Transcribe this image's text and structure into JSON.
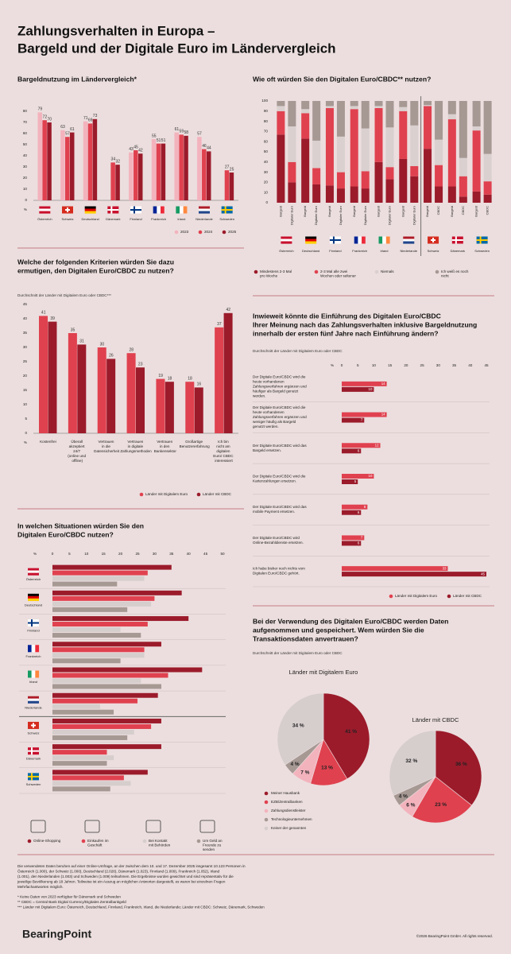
{
  "title": [
    "Zahlungsverhalten in Europa –",
    "Bargeld und der Digitale Euro im Ländervergleich"
  ],
  "chart_data": [
    {
      "type": "bar",
      "title": "Bargeldnutzung im Ländervergleich*",
      "y_label": "%",
      "categories": [
        "Österreich",
        "Schweiz",
        "Deutschland",
        "Dänemark",
        "Finnland",
        "Frankreich",
        "Irland",
        "Niederlande",
        "Schweden"
      ],
      "series": [
        {
          "name": "2023",
          "color": "#f3b3bd",
          "values": [
            79,
            63,
            71,
            null,
            43,
            55,
            61,
            57,
            null
          ]
        },
        {
          "name": "2024",
          "color": "#e0414f",
          "values": [
            72,
            57,
            69,
            34,
            45,
            51,
            59,
            46,
            27
          ]
        },
        {
          "name": "2025",
          "color": "#9b1b2b",
          "values": [
            70,
            61,
            73,
            32,
            42,
            51,
            58,
            44,
            25
          ]
        }
      ],
      "ylim": [
        0,
        80
      ],
      "yticks": [
        0,
        10,
        20,
        30,
        40,
        50,
        60,
        70,
        80
      ],
      "grid": false
    },
    {
      "type": "stacked_bar",
      "title": "Wie oft würden Sie den Digitalen Euro/CBDC** nutzen?",
      "groups": [
        "Österreich",
        "Deutschland",
        "Finnland",
        "Frankreich",
        "Irland",
        "Niederlande",
        "Schweiz",
        "Dänemark",
        "Schweden"
      ],
      "categories": [
        "Bargeld",
        "Digitaler Euro",
        "Bargeld",
        "Digitaler Euro",
        "Bargeld",
        "Digitaler Euro",
        "Bargeld",
        "Digitaler Euro",
        "Bargeld",
        "Digitaler Euro",
        "Bargeld",
        "Digitaler Euro",
        "Bargeld",
        "CBDC",
        "Bargeld",
        "CBDC",
        "Bargeld",
        "CBDC"
      ],
      "series": [
        {
          "name": "Mindestens 2-3 Mal pro Woche",
          "color": "#9b1b2b",
          "values": [
            67,
            20,
            63,
            18,
            17,
            14,
            16,
            14,
            40,
            23,
            43,
            26,
            53,
            16,
            16,
            6,
            11,
            8
          ]
        },
        {
          "name": "2-3 Mal alle zwei Wochen oder seltener",
          "color": "#e0414f",
          "values": [
            23,
            20,
            25,
            16,
            76,
            16,
            76,
            17,
            53,
            12,
            47,
            10,
            42,
            21,
            66,
            20,
            60,
            13
          ]
        },
        {
          "name": "Niemals",
          "color": "#d9d0cf",
          "values": [
            5,
            35,
            4,
            27,
            2,
            35,
            3,
            42,
            2,
            39,
            4,
            40,
            1,
            25,
            5,
            18,
            4,
            27
          ]
        },
        {
          "name": "Ich weiß es noch nicht",
          "color": "#a69893",
          "values": [
            5,
            25,
            8,
            39,
            5,
            35,
            5,
            27,
            5,
            26,
            6,
            24,
            4,
            38,
            13,
            56,
            25,
            52
          ]
        }
      ],
      "ylim": [
        0,
        100
      ],
      "yticks": [
        0,
        10,
        20,
        30,
        40,
        50,
        60,
        70,
        80,
        90,
        100
      ],
      "grid": false
    },
    {
      "type": "bar",
      "title": [
        "Welche der folgenden Kriterien würden Sie dazu",
        "ermutigen, den Digitalen Euro/CBDC zu nutzen?"
      ],
      "subtitle": "Durchschnitt der Länder mit Digitalem Euro oder CBDC***",
      "y_label": "%",
      "categories": [
        "Kostenfrei",
        "Überall akzeptiert 24/7 (online und offline)",
        "Vertrauen in die Datensicherheit",
        "Vertrauen in digitale Zahlungsmethoden",
        "Vertrauen in den Bankensektor",
        "Großartige Benutzererfahrung",
        "Ich bin nicht am digitalen Euro/ CBDC interessiert"
      ],
      "series": [
        {
          "name": "Länder mit Digitalem Euro",
          "color": "#e0414f",
          "values": [
            41,
            35,
            30,
            28,
            19,
            18,
            37
          ]
        },
        {
          "name": "Länder mit CBDC",
          "color": "#9b1b2b",
          "values": [
            39,
            31,
            26,
            23,
            18,
            16,
            42
          ]
        }
      ],
      "ylim": [
        0,
        45
      ],
      "yticks": [
        0,
        5,
        10,
        15,
        20,
        25,
        30,
        35,
        40,
        45
      ],
      "grid": false
    },
    {
      "type": "hbar",
      "title": [
        "In welchen Situationen würden Sie den",
        "Digitalen Euro/CBDC nutzen?"
      ],
      "x_label": "%",
      "categories": [
        "Österreich",
        "Deutschland",
        "Finnland",
        "Frankreich",
        "Irland",
        "Niederlande",
        "Schweiz",
        "Dänemark",
        "Schweden"
      ],
      "series": [
        {
          "name": "Online-Shopping",
          "color": "#9b1b2b",
          "values": [
            35,
            38,
            40,
            32,
            44,
            31,
            32,
            32,
            28
          ]
        },
        {
          "name": "Einkaufen im Geschäft",
          "color": "#e0414f",
          "values": [
            28,
            30,
            28,
            27,
            34,
            25,
            29,
            16,
            21
          ]
        },
        {
          "name": "Bei Kontakt mit Behörden",
          "color": "#d6cdcd",
          "values": [
            27,
            29,
            20,
            27,
            26,
            14,
            24,
            18,
            23
          ]
        },
        {
          "name": "Um Geld an Freunde zu senden",
          "color": "#a69893",
          "values": [
            19,
            22,
            26,
            20,
            32,
            18,
            22,
            16,
            17
          ]
        }
      ],
      "xlim": [
        0,
        50
      ],
      "xticks": [
        0,
        5,
        10,
        15,
        20,
        25,
        30,
        35,
        40,
        45,
        50
      ],
      "grid": false
    },
    {
      "type": "hbar",
      "title": [
        "Inwieweit könnte die Einführung des Digitalen Euro/CBDC",
        "Ihrer Meinung nach das Zahlungsverhalten inklusive Bargeldnutzung",
        "innerhalb der ersten fünf Jahre nach Einführung ändern?"
      ],
      "subtitle": "Durchschnitt der Länder mit Digitalem Euro oder CBDC",
      "x_label": "%",
      "categories": [
        "Der Digitale Euro/CBDC wird die heute vorhandenen Zahlungsverfahren ergänzen und häufiger als Bargeld genutzt werden.",
        "Der Digitale Euro/CBDC wird die heute vorhandenen Zahlungsverfahren ergänzen und weniger häufig als Bargeld genutzt werden.",
        "Der Digitale Euro/CBDC wird das Bargeld ersetzen.",
        "Der Digitale Euro/CBDC wird die Kartenzahlungen ersetzen.",
        "Der Digitale Euro/CBDC wird das mobile Payment ersetzen.",
        "Der Digitale Euro/CBDC wird Online-Bezahldienste ersetzen.",
        "Ich habe bisher noch nichts vom Digitalen Euro/CBDC gehört."
      ],
      "series": [
        {
          "name": "Länder mit Digitalem Euro",
          "color": "#e0414f",
          "values": [
            14,
            14,
            12,
            10,
            8,
            7,
            33
          ]
        },
        {
          "name": "Länder mit CBDC",
          "color": "#9b1b2b",
          "values": [
            10,
            7,
            6,
            5,
            6,
            6,
            45
          ]
        }
      ],
      "xlim": [
        0,
        45
      ],
      "xticks": [
        0,
        5,
        10,
        15,
        20,
        25,
        30,
        35,
        40,
        45
      ],
      "grid": false
    },
    {
      "type": "pie",
      "title": [
        "Bei der Verwendung des Digitalen Euro/CBDC werden Daten",
        "aufgenommen und gespeichert. Wem würden Sie die",
        "Transaktionsdaten anvertrauen?"
      ],
      "subtitle": "Durchschnitt der Länder mit Digitalem Euro oder CBDC",
      "categories": [
        "Meiner Hausbank",
        "EZB/Zentralbanken",
        "Zahlungsdienstleister",
        "Technologieunternehmen",
        "Keiner der genannten"
      ],
      "colors": [
        "#9b1b2b",
        "#e0414f",
        "#f3b3bd",
        "#a69893",
        "#d6cdcd"
      ],
      "pies": [
        {
          "name": "Länder mit Digitalem Euro",
          "values": [
            41,
            13,
            7,
            4,
            34
          ],
          "value_labels": [
            "41 %",
            "13 %",
            "7 %",
            "4 %",
            "34 %"
          ]
        },
        {
          "name": "Länder mit CBDC",
          "values": [
            36,
            23,
            6,
            4,
            32
          ],
          "value_labels": [
            "36 %",
            "23 %",
            "6 %",
            "4 %",
            "32 %"
          ]
        }
      ]
    }
  ],
  "footnotes": {
    "method": "Die verwendeten Daten beruhen auf einer Online-Umfrage, an der zwischen dem 10. und 17. Dezember 2025 insgesamt 10.123 Personen in Österreich (1.000), der Schweiz (1.000), Deutschland (2.026), Dänemark (1.023), Finnland (1.009), Frankreich (1.052), Irland (1.001), den Niederlanden (1.003) und Schweden (1.009) teilnahmen. Die Ergebnisse wurden gewichtet und sind repräsentativ für die jeweilige Bevölkerung ab 18 Jahren. Teilweise ist ein Auszug an möglichen Antworten dargestellt, es waren bei einzelnen Fragen Mehrfachantworten möglich.",
    "notes": [
      "* Keine Daten von 2023 verfügbar für Dänemark und Schweden",
      "** CBDC = Central Bank Digital Currency/Digitales Zentralbankgeld",
      "*** Länder mit Digitalem Euro: Österreich, Deutschland, Finnland, Frankreich, Irland, die Niederlande; Länder mit CBDC: Schweiz, Dänemark, Schweden"
    ]
  },
  "brand": "BearingPoint",
  "copyright": "©2026 BearingPoint GmbH. All rights reserved."
}
